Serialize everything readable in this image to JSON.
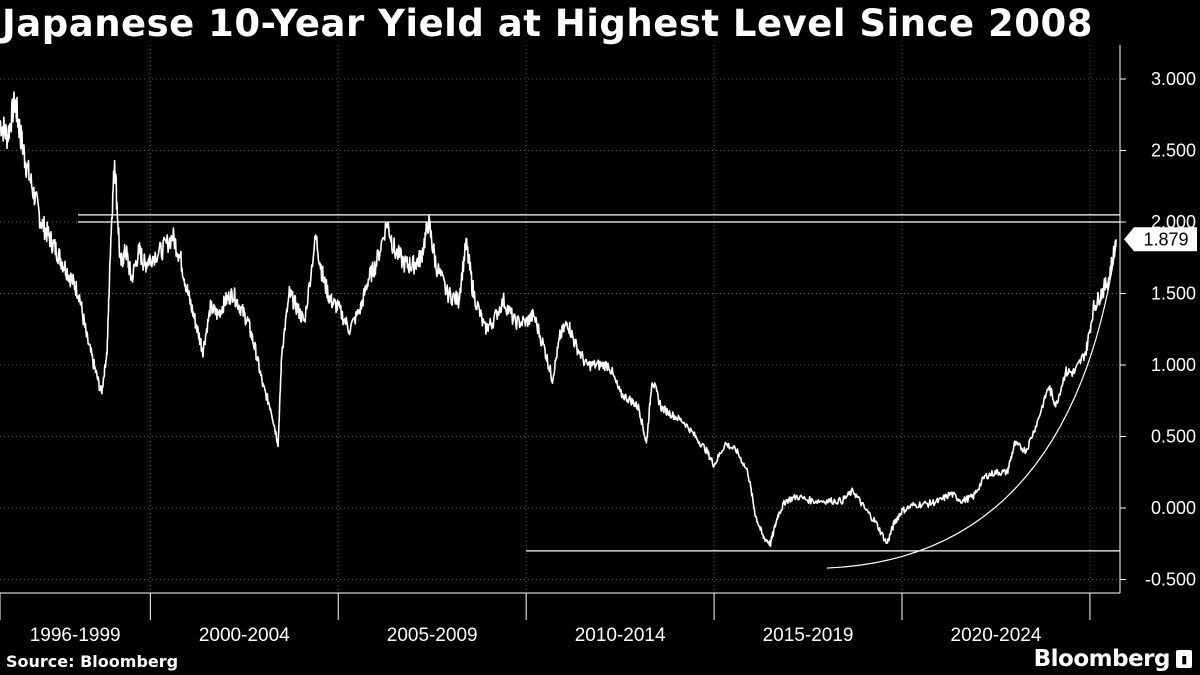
{
  "title": "Japanese 10-Year Yield at Highest Level Since 2008",
  "source": "Source: Bloomberg",
  "brand": "Bloomberg",
  "last_value_label": "1.879",
  "chart_data": {
    "type": "line",
    "title": "Japanese 10-Year Yield at Highest Level Since 2008",
    "x_period_labels": [
      "1996-1999",
      "2000-2004",
      "2005-2009",
      "2010-2014",
      "2015-2019",
      "2020-2024"
    ],
    "x_range": [
      1996.0,
      2025.8
    ],
    "y_ticks": [
      "3.000",
      "2.500",
      "2.000",
      "1.500",
      "1.000",
      "0.500",
      "0.000",
      "-0.500"
    ],
    "ylim": [
      -0.6,
      3.2
    ],
    "grid": true,
    "series": [
      {
        "values": [
          [
            1996.0,
            2.7
          ],
          [
            1996.2,
            2.6
          ],
          [
            1996.4,
            2.85
          ],
          [
            1996.55,
            2.6
          ],
          [
            1996.7,
            2.4
          ],
          [
            1996.9,
            2.2
          ],
          [
            1997.1,
            2.0
          ],
          [
            1997.3,
            1.9
          ],
          [
            1997.5,
            1.8
          ],
          [
            1997.7,
            1.7
          ],
          [
            1997.9,
            1.6
          ],
          [
            1998.1,
            1.5
          ],
          [
            1998.3,
            1.2
          ],
          [
            1998.5,
            1.0
          ],
          [
            1998.7,
            0.8
          ],
          [
            1998.85,
            1.1
          ],
          [
            1998.95,
            1.9
          ],
          [
            1999.05,
            2.45
          ],
          [
            1999.2,
            1.7
          ],
          [
            1999.35,
            1.8
          ],
          [
            1999.5,
            1.6
          ],
          [
            1999.7,
            1.8
          ],
          [
            1999.85,
            1.7
          ],
          [
            2000.0,
            1.75
          ],
          [
            2000.3,
            1.8
          ],
          [
            2000.6,
            1.9
          ],
          [
            2000.8,
            1.75
          ],
          [
            2001.0,
            1.5
          ],
          [
            2001.2,
            1.3
          ],
          [
            2001.4,
            1.1
          ],
          [
            2001.6,
            1.4
          ],
          [
            2001.8,
            1.35
          ],
          [
            2002.0,
            1.45
          ],
          [
            2002.2,
            1.5
          ],
          [
            2002.4,
            1.4
          ],
          [
            2002.6,
            1.3
          ],
          [
            2002.8,
            1.1
          ],
          [
            2003.0,
            0.85
          ],
          [
            2003.2,
            0.7
          ],
          [
            2003.4,
            0.45
          ],
          [
            2003.5,
            1.1
          ],
          [
            2003.7,
            1.5
          ],
          [
            2003.9,
            1.4
          ],
          [
            2004.1,
            1.3
          ],
          [
            2004.4,
            1.9
          ],
          [
            2004.6,
            1.6
          ],
          [
            2004.8,
            1.45
          ],
          [
            2005.0,
            1.4
          ],
          [
            2005.3,
            1.25
          ],
          [
            2005.6,
            1.4
          ],
          [
            2005.8,
            1.6
          ],
          [
            2006.0,
            1.7
          ],
          [
            2006.3,
            2.0
          ],
          [
            2006.5,
            1.8
          ],
          [
            2006.8,
            1.7
          ],
          [
            2007.0,
            1.7
          ],
          [
            2007.2,
            1.75
          ],
          [
            2007.4,
            2.0
          ],
          [
            2007.6,
            1.7
          ],
          [
            2007.9,
            1.5
          ],
          [
            2008.2,
            1.45
          ],
          [
            2008.4,
            1.85
          ],
          [
            2008.6,
            1.5
          ],
          [
            2008.9,
            1.25
          ],
          [
            2009.1,
            1.3
          ],
          [
            2009.4,
            1.45
          ],
          [
            2009.7,
            1.3
          ],
          [
            2010.0,
            1.3
          ],
          [
            2010.2,
            1.35
          ],
          [
            2010.5,
            1.1
          ],
          [
            2010.7,
            0.9
          ],
          [
            2010.9,
            1.2
          ],
          [
            2011.1,
            1.3
          ],
          [
            2011.3,
            1.15
          ],
          [
            2011.6,
            1.0
          ],
          [
            2011.9,
            1.0
          ],
          [
            2012.2,
            1.0
          ],
          [
            2012.5,
            0.8
          ],
          [
            2012.8,
            0.75
          ],
          [
            2013.0,
            0.7
          ],
          [
            2013.2,
            0.45
          ],
          [
            2013.35,
            0.9
          ],
          [
            2013.6,
            0.7
          ],
          [
            2013.9,
            0.65
          ],
          [
            2014.2,
            0.6
          ],
          [
            2014.5,
            0.5
          ],
          [
            2014.8,
            0.4
          ],
          [
            2015.0,
            0.3
          ],
          [
            2015.3,
            0.45
          ],
          [
            2015.6,
            0.4
          ],
          [
            2015.9,
            0.25
          ],
          [
            2016.1,
            -0.05
          ],
          [
            2016.3,
            -0.2
          ],
          [
            2016.5,
            -0.25
          ],
          [
            2016.7,
            -0.05
          ],
          [
            2016.9,
            0.05
          ],
          [
            2017.2,
            0.08
          ],
          [
            2017.6,
            0.05
          ],
          [
            2018.0,
            0.05
          ],
          [
            2018.4,
            0.05
          ],
          [
            2018.7,
            0.12
          ],
          [
            2019.0,
            0.0
          ],
          [
            2019.3,
            -0.1
          ],
          [
            2019.6,
            -0.25
          ],
          [
            2019.8,
            -0.1
          ],
          [
            2020.0,
            -0.02
          ],
          [
            2020.3,
            0.02
          ],
          [
            2020.7,
            0.03
          ],
          [
            2021.0,
            0.05
          ],
          [
            2021.3,
            0.1
          ],
          [
            2021.6,
            0.05
          ],
          [
            2021.9,
            0.08
          ],
          [
            2022.2,
            0.22
          ],
          [
            2022.5,
            0.25
          ],
          [
            2022.8,
            0.25
          ],
          [
            2023.0,
            0.45
          ],
          [
            2023.3,
            0.4
          ],
          [
            2023.6,
            0.6
          ],
          [
            2023.9,
            0.85
          ],
          [
            2024.1,
            0.72
          ],
          [
            2024.35,
            0.95
          ],
          [
            2024.6,
            0.95
          ],
          [
            2024.9,
            1.1
          ],
          [
            2025.1,
            1.4
          ],
          [
            2025.3,
            1.5
          ],
          [
            2025.5,
            1.6
          ],
          [
            2025.7,
            1.879
          ]
        ]
      }
    ],
    "reference_lines": [
      {
        "y": 2.05
      },
      {
        "y": 2.0
      },
      {
        "y": -0.3
      }
    ],
    "last_value": 1.879
  }
}
